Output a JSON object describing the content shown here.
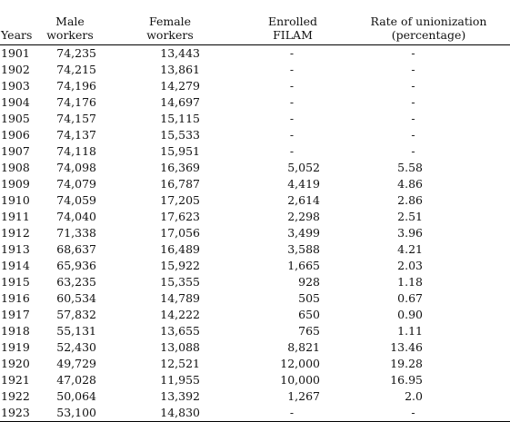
{
  "table": {
    "headers": [
      "Years",
      "Male workers",
      "Female workers",
      "Enrolled FILAM",
      "Rate of unionization (percentage)"
    ],
    "header_lines": [
      [
        "Years"
      ],
      [
        "Male",
        "workers"
      ],
      [
        "Female",
        "workers"
      ],
      [
        "Enrolled",
        "FILAM"
      ],
      [
        "Rate of unionization",
        "(percentage)"
      ]
    ],
    "rows": [
      [
        "1901",
        "74,235",
        "13,443",
        "-",
        "-"
      ],
      [
        "1902",
        "74,215",
        "13,861",
        "-",
        "-"
      ],
      [
        "1903",
        "74,196",
        "14,279",
        "-",
        "-"
      ],
      [
        "1904",
        "74,176",
        "14,697",
        "-",
        "-"
      ],
      [
        "1905",
        "74,157",
        "15,115",
        "-",
        "-"
      ],
      [
        "1906",
        "74,137",
        "15,533",
        "-",
        "-"
      ],
      [
        "1907",
        "74,118",
        "15,951",
        "-",
        "-"
      ],
      [
        "1908",
        "74,098",
        "16,369",
        "5,052",
        "5.58"
      ],
      [
        "1909",
        "74,079",
        "16,787",
        "4,419",
        "4.86"
      ],
      [
        "1910",
        "74,059",
        "17,205",
        "2,614",
        "2.86"
      ],
      [
        "1911",
        "74,040",
        "17,623",
        "2,298",
        "2.51"
      ],
      [
        "1912",
        "71,338",
        "17,056",
        "3,499",
        "3.96"
      ],
      [
        "1913",
        "68,637",
        "16,489",
        "3,588",
        "4.21"
      ],
      [
        "1914",
        "65,936",
        "15,922",
        "1,665",
        "2.03"
      ],
      [
        "1915",
        "63,235",
        "15,355",
        "928",
        "1.18"
      ],
      [
        "1916",
        "60,534",
        "14,789",
        "505",
        "0.67"
      ],
      [
        "1917",
        "57,832",
        "14,222",
        "650",
        "0.90"
      ],
      [
        "1918",
        "55,131",
        "13,655",
        "765",
        "1.11"
      ],
      [
        "1919",
        "52,430",
        "13,088",
        "8,821",
        "13.46"
      ],
      [
        "1920",
        "49,729",
        "12,521",
        "12,000",
        "19.28"
      ],
      [
        "1921",
        "47,028",
        "11,955",
        "10,000",
        "16.95"
      ],
      [
        "1922",
        "50,064",
        "13,392",
        "1,267",
        "2.0"
      ],
      [
        "1923",
        "53,100",
        "14,830",
        "-",
        "-"
      ]
    ]
  }
}
